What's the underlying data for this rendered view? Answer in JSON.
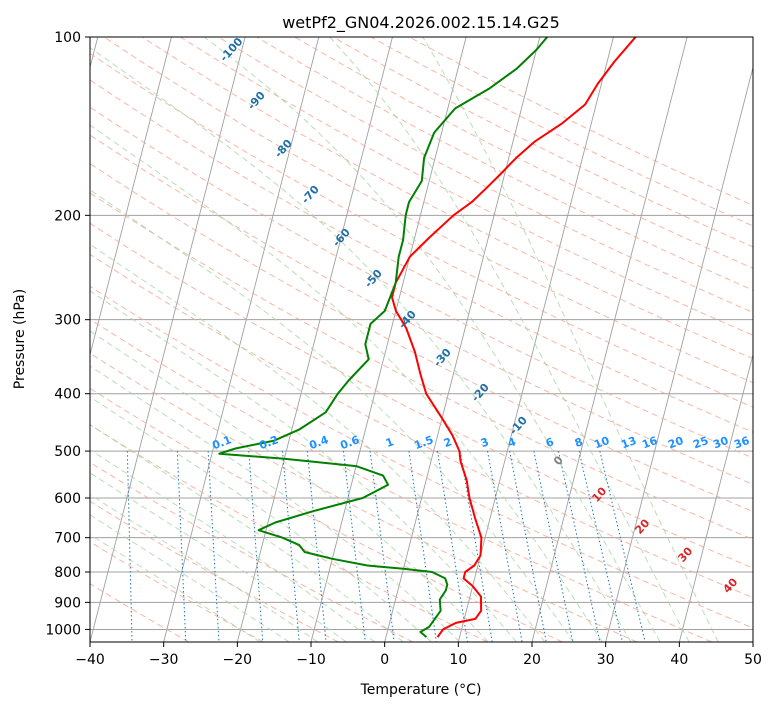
{
  "chart_data": {
    "type": "line",
    "title": "wetPf2_GN04.2026.002.15.14.G25",
    "xlabel": "Temperature (°C)",
    "ylabel": "Pressure (hPa)",
    "xlim": [
      -40,
      50
    ],
    "ylim": [
      1050,
      100
    ],
    "y_scale": "log",
    "grid": true,
    "x_ticks": [
      -40,
      -30,
      -20,
      -10,
      0,
      10,
      20,
      30,
      40,
      50
    ],
    "y_ticks": [
      1000,
      900,
      800,
      700,
      600,
      500,
      400,
      300,
      200,
      100
    ],
    "series": [
      {
        "name": "",
        "color": "#ff0000",
        "points": [
          [
            7.0,
            1030
          ],
          [
            7.5,
            1000
          ],
          [
            9.0,
            975
          ],
          [
            11.5,
            960
          ],
          [
            12.0,
            930
          ],
          [
            11.5,
            880
          ],
          [
            10.0,
            845
          ],
          [
            8.5,
            820
          ],
          [
            8.5,
            800
          ],
          [
            9.5,
            780
          ],
          [
            10.0,
            750
          ],
          [
            9.5,
            700
          ],
          [
            8.0,
            650
          ],
          [
            6.5,
            600
          ],
          [
            5.5,
            560
          ],
          [
            4.0,
            520
          ],
          [
            3.5,
            500
          ],
          [
            2.0,
            470
          ],
          [
            0.0,
            440
          ],
          [
            -3.0,
            400
          ],
          [
            -4.5,
            370
          ],
          [
            -6.0,
            340
          ],
          [
            -8.0,
            310
          ],
          [
            -10.0,
            290
          ],
          [
            -11.0,
            275
          ],
          [
            -11.0,
            260
          ],
          [
            -10.0,
            235
          ],
          [
            -8.0,
            218
          ],
          [
            -5.5,
            200
          ],
          [
            -3.5,
            190
          ],
          [
            -2.0,
            180
          ],
          [
            -0.5,
            170
          ],
          [
            1.0,
            160
          ],
          [
            3.0,
            150
          ],
          [
            6.0,
            140
          ],
          [
            8.5,
            130
          ],
          [
            9.5,
            120
          ],
          [
            11.0,
            110
          ],
          [
            13.0,
            100
          ]
        ]
      },
      {
        "name": "",
        "color": "#008000",
        "points": [
          [
            5.5,
            1030
          ],
          [
            4.5,
            1010
          ],
          [
            5.5,
            990
          ],
          [
            6.0,
            960
          ],
          [
            6.5,
            930
          ],
          [
            6.0,
            890
          ],
          [
            6.5,
            860
          ],
          [
            6.5,
            840
          ],
          [
            6.0,
            820
          ],
          [
            4.0,
            800
          ],
          [
            0.0,
            790
          ],
          [
            -5.0,
            780
          ],
          [
            -10.0,
            760
          ],
          [
            -14.0,
            740
          ],
          [
            -15.0,
            720
          ],
          [
            -17.5,
            700
          ],
          [
            -21.0,
            680
          ],
          [
            -19.0,
            660
          ],
          [
            -14.0,
            630
          ],
          [
            -8.0,
            600
          ],
          [
            -5.0,
            570
          ],
          [
            -6.0,
            550
          ],
          [
            -10.0,
            530
          ],
          [
            -20.0,
            515
          ],
          [
            -29.0,
            505
          ],
          [
            -27.0,
            495
          ],
          [
            -22.0,
            480
          ],
          [
            -19.0,
            460
          ],
          [
            -16.0,
            430
          ],
          [
            -15.0,
            400
          ],
          [
            -14.0,
            380
          ],
          [
            -12.0,
            350
          ],
          [
            -13.0,
            330
          ],
          [
            -13.0,
            305
          ],
          [
            -11.5,
            290
          ],
          [
            -11.0,
            260
          ],
          [
            -11.5,
            235
          ],
          [
            -11.5,
            220
          ],
          [
            -12.0,
            200
          ],
          [
            -12.0,
            190
          ],
          [
            -11.0,
            175
          ],
          [
            -11.5,
            160
          ],
          [
            -11.0,
            145
          ],
          [
            -9.0,
            132
          ],
          [
            -5.0,
            122
          ],
          [
            -2.0,
            113
          ],
          [
            0.0,
            105
          ],
          [
            1.0,
            100
          ]
        ]
      }
    ],
    "dry_adiabat_labels": [
      "-100",
      "-90",
      "-80",
      "-70",
      "-60",
      "-50",
      "-40",
      "-30",
      "-20",
      "-10",
      "0",
      "10",
      "20",
      "30",
      "40"
    ],
    "mixing_ratio_labels": [
      "0.1",
      "0.2",
      "0.4",
      "0.6",
      "1",
      "1.5",
      "2",
      "3",
      "4",
      "6",
      "8",
      "10",
      "13",
      "16",
      "20",
      "25",
      "30",
      "36"
    ],
    "colors": {
      "temperature": "#ff0000",
      "dewpoint": "#008000",
      "dry_adiabat": "#f2a58f",
      "moist_adiabat": "#a9d5a9",
      "mixing_ratio": "#1f77b4",
      "mixing_ratio_label": "#1e90ff",
      "isotherm": "#a0a0a0",
      "isobar": "#a0a0a0",
      "adiabat_label": "#1f6fa8",
      "warm_label": "#d62728",
      "zero_label": "#7f7f7f",
      "dry_adiabat_tan": "#d2b48c"
    }
  }
}
